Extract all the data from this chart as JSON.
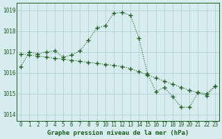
{
  "title": "Graphe pression niveau de la mer (hPa)",
  "background_color": "#d6ecee",
  "grid_color": "#b8d4d8",
  "line_color": "#1a5c1a",
  "marker_color": "#1a5c1a",
  "x_label_fontsize": 5.5,
  "y_label_fontsize": 5.5,
  "title_fontsize": 6.5,
  "xlim": [
    -0.5,
    23.5
  ],
  "ylim": [
    1013.7,
    1019.35
  ],
  "yticks": [
    1014,
    1015,
    1016,
    1017,
    1018,
    1019
  ],
  "xticks": [
    0,
    1,
    2,
    3,
    4,
    5,
    6,
    7,
    8,
    9,
    10,
    11,
    12,
    13,
    14,
    15,
    16,
    17,
    18,
    19,
    20,
    21,
    22,
    23
  ],
  "series1_x": [
    0,
    1,
    2,
    3,
    4,
    5,
    6,
    7,
    8,
    9,
    10,
    11,
    12,
    13,
    14,
    15,
    16,
    17,
    18,
    19,
    20,
    21,
    22,
    23
  ],
  "series1_y": [
    1016.3,
    1017.0,
    1016.9,
    1017.0,
    1017.05,
    1016.75,
    1016.85,
    1017.05,
    1017.55,
    1018.15,
    1018.25,
    1018.85,
    1018.9,
    1018.75,
    1017.65,
    1015.95,
    1015.1,
    1015.3,
    1014.85,
    1014.35,
    1014.35,
    1015.05,
    1014.9,
    1015.35
  ],
  "series2_x": [
    0,
    1,
    2,
    3,
    4,
    5,
    6,
    7,
    8,
    9,
    10,
    11,
    12,
    13,
    14,
    15,
    16,
    17,
    18,
    19,
    20,
    21,
    22,
    23
  ],
  "series2_y": [
    1016.9,
    1016.85,
    1016.8,
    1016.75,
    1016.7,
    1016.65,
    1016.6,
    1016.55,
    1016.5,
    1016.45,
    1016.4,
    1016.35,
    1016.3,
    1016.2,
    1016.05,
    1015.9,
    1015.75,
    1015.6,
    1015.45,
    1015.3,
    1015.15,
    1015.05,
    1015.0,
    1015.35
  ]
}
